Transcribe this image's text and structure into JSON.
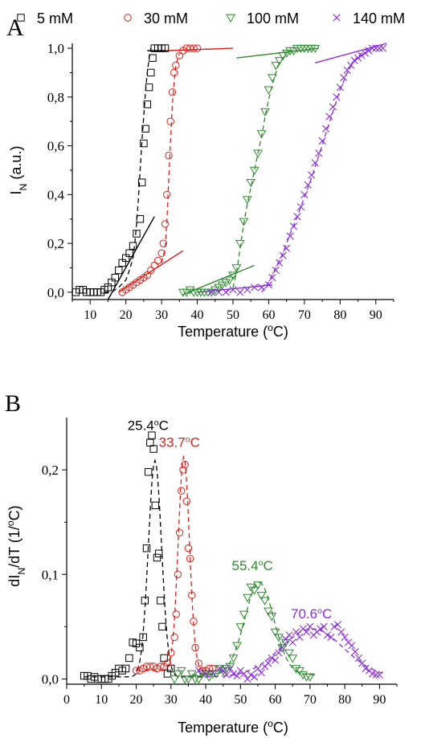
{
  "chart_data": [
    {
      "panel": "A",
      "type": "scatter",
      "xlabel_text": "Temperature (",
      "xlabel_sup": "o",
      "xlabel_end": "C)",
      "ylabel_main": "I",
      "ylabel_sub": "N",
      "ylabel_end": " (a.u.)",
      "xlim": [
        5,
        95
      ],
      "ylim": [
        -0.03,
        1.02
      ],
      "xticks": [
        "10",
        "20",
        "30",
        "40",
        "50",
        "60",
        "70",
        "80",
        "90"
      ],
      "yticks": [
        "0,0",
        "0,2",
        "0,4",
        "0,6",
        "0,8",
        "1,0"
      ],
      "grid": false,
      "legend_position": "top",
      "series": [
        {
          "name": "5 mM",
          "marker": "square",
          "color": "#000000",
          "x": [
            6,
            7,
            8,
            9,
            10,
            11,
            12,
            13,
            14,
            15,
            16,
            17,
            18,
            19,
            20,
            21,
            22,
            23,
            24,
            24.5,
            25,
            25.5,
            26,
            26.5,
            27,
            27.5,
            28,
            29,
            30,
            31
          ],
          "y": [
            0.0,
            0.01,
            0.01,
            0.0,
            0.0,
            0.0,
            0.0,
            0.0,
            0.01,
            0.02,
            0.04,
            0.06,
            0.09,
            0.12,
            0.14,
            0.16,
            0.19,
            0.24,
            0.3,
            0.45,
            0.61,
            0.67,
            0.77,
            0.84,
            0.9,
            0.96,
            1.0,
            1.0,
            1.0,
            1.0
          ]
        },
        {
          "name": "30 mM",
          "marker": "circle",
          "color": "#e0201b",
          "x": [
            19,
            20,
            21,
            22,
            23,
            24,
            25,
            26,
            27,
            28,
            29,
            30,
            30.5,
            31,
            31.5,
            32,
            32.5,
            33,
            33.5,
            34,
            35,
            36,
            37,
            38,
            39,
            40
          ],
          "y": [
            0.0,
            0.01,
            0.02,
            0.03,
            0.04,
            0.05,
            0.06,
            0.07,
            0.09,
            0.11,
            0.13,
            0.16,
            0.2,
            0.28,
            0.4,
            0.56,
            0.7,
            0.82,
            0.9,
            0.93,
            0.97,
            0.99,
            1.0,
            1.0,
            1.0,
            1.0
          ]
        },
        {
          "name": "100 mM",
          "marker": "triangle-down",
          "color": "#2e8b2e",
          "x": [
            36,
            37,
            38,
            39,
            40,
            41,
            42,
            43,
            44,
            45,
            46,
            47,
            48,
            49,
            50,
            51,
            52,
            53,
            54,
            55,
            56,
            57,
            58,
            59,
            60,
            61,
            62,
            63,
            64,
            65,
            66,
            67,
            68,
            69,
            70,
            71,
            72,
            73
          ],
          "y": [
            0.0,
            0.0,
            0.01,
            0.0,
            0.0,
            0.0,
            0.0,
            0.0,
            0.0,
            0.01,
            0.02,
            0.03,
            0.04,
            0.05,
            0.07,
            0.1,
            0.2,
            0.29,
            0.38,
            0.45,
            0.5,
            0.57,
            0.65,
            0.74,
            0.83,
            0.88,
            0.93,
            0.95,
            0.97,
            0.98,
            0.99,
            0.99,
            1.0,
            1.0,
            1.0,
            1.0,
            1.0,
            1.0
          ]
        },
        {
          "name": "140 mM",
          "marker": "cross",
          "color": "#8a2be2",
          "x": [
            44,
            46,
            48,
            50,
            52,
            54,
            56,
            58,
            60,
            61,
            62,
            63,
            64,
            65,
            66,
            67,
            68,
            69,
            70,
            71,
            72,
            73,
            74,
            75,
            76,
            77,
            78,
            79,
            80,
            81,
            82,
            83,
            84,
            85,
            86,
            87,
            88,
            89,
            90,
            91,
            92
          ],
          "y": [
            0.0,
            0.0,
            0.0,
            0.01,
            0.0,
            0.01,
            0.02,
            0.02,
            0.03,
            0.06,
            0.09,
            0.12,
            0.15,
            0.18,
            0.23,
            0.27,
            0.31,
            0.35,
            0.4,
            0.44,
            0.48,
            0.53,
            0.57,
            0.62,
            0.67,
            0.72,
            0.76,
            0.8,
            0.84,
            0.88,
            0.91,
            0.93,
            0.95,
            0.96,
            0.97,
            0.98,
            0.99,
            1.0,
            1.0,
            1.0,
            1.0
          ]
        }
      ],
      "fit_curves": [
        {
          "color": "#000000",
          "x": [
            14,
            16,
            18,
            20,
            21,
            22,
            22.5,
            23,
            23.5,
            24,
            24.5,
            25,
            25.5,
            26,
            26.5,
            27
          ],
          "y": [
            0.0,
            0.0,
            0.02,
            0.05,
            0.09,
            0.14,
            0.2,
            0.28,
            0.38,
            0.5,
            0.62,
            0.72,
            0.82,
            0.9,
            0.96,
            1.0
          ]
        },
        {
          "color": "#e0201b",
          "x": [
            30,
            31,
            31.5,
            32,
            32.5,
            33,
            33.5,
            34,
            35
          ],
          "y": [
            0.12,
            0.18,
            0.3,
            0.46,
            0.62,
            0.76,
            0.86,
            0.93,
            0.98
          ]
        },
        {
          "color": "#2e8b2e",
          "x": [
            48,
            50,
            51,
            52,
            53,
            54,
            55,
            56,
            57,
            58,
            59,
            60,
            61,
            62,
            63,
            64,
            65,
            66
          ],
          "y": [
            0.0,
            0.02,
            0.08,
            0.18,
            0.28,
            0.36,
            0.43,
            0.5,
            0.57,
            0.64,
            0.72,
            0.79,
            0.85,
            0.9,
            0.94,
            0.96,
            0.98,
            1.0
          ]
        },
        {
          "color": "#8a2be2",
          "x": [
            58,
            60,
            62,
            64,
            66,
            68,
            70,
            72,
            74,
            76,
            78,
            80,
            82,
            84,
            86,
            88
          ],
          "y": [
            0.0,
            0.04,
            0.1,
            0.16,
            0.24,
            0.31,
            0.39,
            0.47,
            0.56,
            0.65,
            0.74,
            0.83,
            0.9,
            0.95,
            0.98,
            1.0
          ]
        }
      ],
      "tangent_lines": [
        {
          "color": "#000000",
          "x": [
            15,
            28
          ],
          "y": [
            -0.03,
            0.31
          ]
        },
        {
          "color": "#e0201b",
          "x": [
            18,
            36
          ],
          "y": [
            0.0,
            0.17
          ]
        },
        {
          "color": "#2e8b2e",
          "x": [
            36,
            56
          ],
          "y": [
            -0.01,
            0.11
          ]
        },
        {
          "color": "#8a2be2",
          "x": [
            40,
            61
          ],
          "y": [
            0.0,
            0.03
          ]
        },
        {
          "color": "#000000",
          "x": [
            26,
            32
          ],
          "y": [
            0.99,
            0.99
          ]
        },
        {
          "color": "#e0201b",
          "x": [
            31,
            50
          ],
          "y": [
            0.99,
            1.0
          ]
        },
        {
          "color": "#2e8b2e",
          "x": [
            51,
            74
          ],
          "y": [
            0.96,
            1.0
          ]
        },
        {
          "color": "#8a2be2",
          "x": [
            73,
            93
          ],
          "y": [
            0.94,
            1.02
          ]
        }
      ]
    },
    {
      "panel": "B",
      "type": "scatter",
      "xlabel_text": "Temperature (",
      "xlabel_sup": "o",
      "xlabel_end": "C)",
      "ylabel_main": "dI",
      "ylabel_sub": "N",
      "ylabel_end": "/dT (1/",
      "ylabel_sup": "o",
      "ylabel_close": "C)",
      "xlim": [
        0,
        95
      ],
      "ylim": [
        -0.005,
        0.25
      ],
      "xticks": [
        "0",
        "10",
        "20",
        "30",
        "40",
        "50",
        "60",
        "70",
        "80",
        "90"
      ],
      "yticks": [
        "0,0",
        "0,1",
        "0,2"
      ],
      "grid": false,
      "annotations": [
        {
          "text_value": "25.4",
          "unit_sup": "o",
          "unit": "C",
          "color": "#000000",
          "x": 17.5,
          "y": 0.238
        },
        {
          "text_value": "33.7",
          "unit_sup": "o",
          "unit": "C",
          "color": "#e0201b",
          "x": 26.5,
          "y": 0.222
        },
        {
          "text_value": "55.4",
          "unit_sup": "o",
          "unit": "C",
          "color": "#2e8b2e",
          "x": 47.5,
          "y": 0.104
        },
        {
          "text_value": "70.6",
          "unit_sup": "o",
          "unit": "C",
          "color": "#8a2be2",
          "x": 64.5,
          "y": 0.058
        }
      ],
      "series": [
        {
          "name": "5 mM",
          "marker": "square",
          "color": "#000000",
          "x": [
            5,
            6,
            7,
            8,
            9,
            10,
            11,
            12,
            13,
            14,
            15,
            16,
            17,
            18,
            19,
            20,
            21,
            22,
            22.5,
            23,
            23.5,
            24,
            24.5,
            25,
            25.5,
            26,
            26.5,
            27,
            27.5,
            28,
            29,
            30
          ],
          "y": [
            0.003,
            0.003,
            0.0,
            0.002,
            0.0,
            0.0,
            0.0,
            0.0,
            0.003,
            0.006,
            0.01,
            0.008,
            0.01,
            0.02,
            0.035,
            0.034,
            0.03,
            0.04,
            0.075,
            0.125,
            0.198,
            0.226,
            0.233,
            0.22,
            0.166,
            0.116,
            0.12,
            0.075,
            0.05,
            0.02,
            0.005,
            0.01
          ]
        },
        {
          "name": "30 mM",
          "marker": "circle",
          "color": "#e0201b",
          "x": [
            20,
            21,
            22,
            23,
            24,
            25,
            26,
            27,
            28,
            29,
            30,
            31,
            31.5,
            32,
            32.5,
            33,
            33.5,
            34,
            34.5,
            35,
            35.5,
            36,
            36.5,
            37,
            38,
            39,
            40,
            41,
            42
          ],
          "y": [
            0.008,
            0.008,
            0.01,
            0.012,
            0.012,
            0.012,
            0.01,
            0.012,
            0.012,
            0.015,
            0.025,
            0.04,
            0.062,
            0.1,
            0.14,
            0.18,
            0.2,
            0.205,
            0.17,
            0.125,
            0.115,
            0.08,
            0.055,
            0.03,
            0.015,
            0.008,
            0.008,
            0.01,
            0.01
          ]
        },
        {
          "name": "100 mM",
          "marker": "triangle-down",
          "color": "#2e8b2e",
          "x": [
            31,
            32,
            33,
            34,
            35,
            36,
            37,
            38,
            39,
            40,
            41,
            42,
            43,
            44,
            45,
            46,
            47,
            48,
            49,
            50,
            51,
            52,
            53,
            54,
            55,
            56,
            57,
            58,
            59,
            60,
            61,
            62,
            63,
            64,
            65,
            66,
            67,
            68,
            69,
            70
          ],
          "y": [
            0.0,
            0.005,
            0.008,
            0.0,
            0.0,
            0.005,
            0.0,
            0.0,
            0.005,
            0.005,
            0.002,
            0.005,
            0.005,
            0.01,
            0.008,
            0.01,
            0.012,
            0.02,
            0.032,
            0.05,
            0.062,
            0.078,
            0.088,
            0.085,
            0.09,
            0.08,
            0.075,
            0.065,
            0.06,
            0.045,
            0.04,
            0.03,
            0.035,
            0.025,
            0.02,
            0.01,
            0.008,
            0.004,
            0.002,
            0.002
          ]
        },
        {
          "name": "140 mM",
          "marker": "cross",
          "color": "#8a2be2",
          "x": [
            38,
            40,
            42,
            44,
            45,
            46,
            47,
            48,
            49,
            50,
            51,
            52,
            53,
            54,
            55,
            56,
            57,
            58,
            59,
            60,
            61,
            62,
            63,
            64,
            65,
            66,
            67,
            68,
            69,
            70,
            71,
            72,
            73,
            74,
            75,
            76,
            77,
            78,
            79,
            80,
            81,
            82,
            83,
            84,
            85,
            86,
            87,
            88,
            89,
            90
          ],
          "y": [
            0.008,
            0.005,
            0.006,
            0.01,
            0.008,
            0.004,
            0.01,
            0.005,
            0.003,
            0.008,
            0.005,
            0.0,
            0.004,
            0.002,
            0.01,
            0.006,
            0.012,
            0.015,
            0.02,
            0.018,
            0.025,
            0.03,
            0.038,
            0.042,
            0.035,
            0.045,
            0.04,
            0.048,
            0.045,
            0.05,
            0.042,
            0.045,
            0.048,
            0.05,
            0.042,
            0.04,
            0.05,
            0.052,
            0.045,
            0.04,
            0.035,
            0.032,
            0.026,
            0.02,
            0.015,
            0.01,
            0.008,
            0.005,
            0.004,
            0.004
          ]
        }
      ],
      "fit_curves": [
        {
          "color": "#000000",
          "gauss": [
            25.4,
            0.207,
            1.9
          ],
          "from": 5,
          "to": 40,
          "base": 0.002
        },
        {
          "color": "#e0201b",
          "gauss": [
            33.7,
            0.205,
            1.6
          ],
          "from": 20,
          "to": 45,
          "base": 0.008
        },
        {
          "color": "#2e8b2e",
          "gauss": [
            55.4,
            0.088,
            4.2
          ],
          "from": 36,
          "to": 72,
          "base": 0.004
        },
        {
          "color": "#8a2be2",
          "gauss": [
            70.6,
            0.046,
            9.0
          ],
          "from": 40,
          "to": 92,
          "base": 0.002
        }
      ]
    }
  ],
  "panel_labels": {
    "a": "A",
    "b": "B"
  }
}
